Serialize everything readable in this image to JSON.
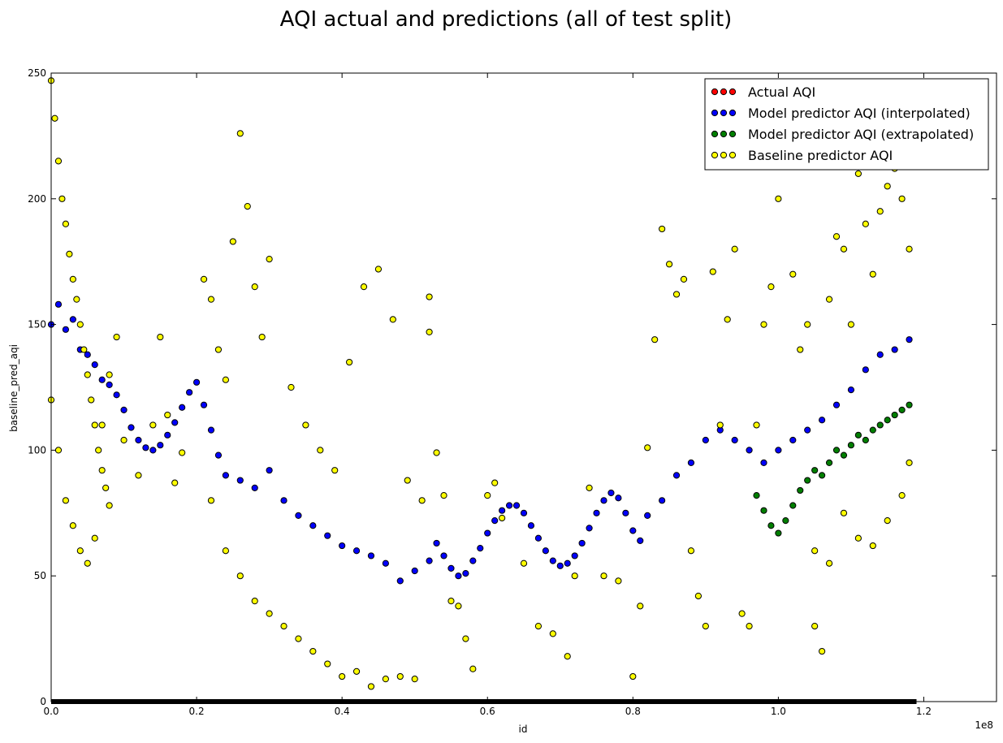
{
  "chart_data": {
    "type": "scatter",
    "title": "AQI actual and predictions (all of test split)",
    "xlabel": "id",
    "ylabel": "baseline_pred_aqi",
    "xlim": [
      0,
      1.3
    ],
    "ylim": [
      0,
      250
    ],
    "x_scale_label": "1e8",
    "x_unit_multiplier": 100000000,
    "x_ticks": [
      "0.0",
      "0.2",
      "0.4",
      "0.6",
      "0.8",
      "1.0",
      "1.2"
    ],
    "y_ticks": [
      "0",
      "50",
      "100",
      "150",
      "200",
      "250"
    ],
    "grid": false,
    "legend_position": "top-right",
    "series": [
      {
        "name": "Actual AQI",
        "color": "#ff0000",
        "kind": "flat-line",
        "x_range": [
          0.0,
          1.19
        ],
        "y": 0
      },
      {
        "name": "Model predictor AQI (interpolated)",
        "color": "#0000ff",
        "points": [
          [
            0.0,
            150
          ],
          [
            0.01,
            158
          ],
          [
            0.02,
            148
          ],
          [
            0.03,
            152
          ],
          [
            0.04,
            140
          ],
          [
            0.05,
            138
          ],
          [
            0.06,
            134
          ],
          [
            0.07,
            128
          ],
          [
            0.08,
            126
          ],
          [
            0.09,
            122
          ],
          [
            0.1,
            116
          ],
          [
            0.11,
            109
          ],
          [
            0.12,
            104
          ],
          [
            0.13,
            101
          ],
          [
            0.14,
            100
          ],
          [
            0.15,
            102
          ],
          [
            0.16,
            106
          ],
          [
            0.17,
            111
          ],
          [
            0.18,
            117
          ],
          [
            0.19,
            123
          ],
          [
            0.2,
            127
          ],
          [
            0.21,
            118
          ],
          [
            0.22,
            108
          ],
          [
            0.23,
            98
          ],
          [
            0.24,
            90
          ],
          [
            0.26,
            88
          ],
          [
            0.28,
            85
          ],
          [
            0.3,
            92
          ],
          [
            0.32,
            80
          ],
          [
            0.34,
            74
          ],
          [
            0.36,
            70
          ],
          [
            0.38,
            66
          ],
          [
            0.4,
            62
          ],
          [
            0.42,
            60
          ],
          [
            0.44,
            58
          ],
          [
            0.46,
            55
          ],
          [
            0.48,
            48
          ],
          [
            0.5,
            52
          ],
          [
            0.52,
            56
          ],
          [
            0.53,
            63
          ],
          [
            0.54,
            58
          ],
          [
            0.55,
            53
          ],
          [
            0.56,
            50
          ],
          [
            0.57,
            51
          ],
          [
            0.58,
            56
          ],
          [
            0.59,
            61
          ],
          [
            0.6,
            67
          ],
          [
            0.61,
            72
          ],
          [
            0.62,
            76
          ],
          [
            0.63,
            78
          ],
          [
            0.64,
            78
          ],
          [
            0.65,
            75
          ],
          [
            0.66,
            70
          ],
          [
            0.67,
            65
          ],
          [
            0.68,
            60
          ],
          [
            0.69,
            56
          ],
          [
            0.7,
            54
          ],
          [
            0.71,
            55
          ],
          [
            0.72,
            58
          ],
          [
            0.73,
            63
          ],
          [
            0.74,
            69
          ],
          [
            0.75,
            75
          ],
          [
            0.76,
            80
          ],
          [
            0.77,
            83
          ],
          [
            0.78,
            81
          ],
          [
            0.79,
            75
          ],
          [
            0.8,
            68
          ],
          [
            0.81,
            64
          ],
          [
            0.82,
            74
          ],
          [
            0.84,
            80
          ],
          [
            0.86,
            90
          ],
          [
            0.88,
            95
          ],
          [
            0.9,
            104
          ],
          [
            0.92,
            108
          ],
          [
            0.94,
            104
          ],
          [
            0.96,
            100
          ],
          [
            0.98,
            95
          ],
          [
            1.0,
            100
          ],
          [
            1.02,
            104
          ],
          [
            1.04,
            108
          ],
          [
            1.06,
            112
          ],
          [
            1.08,
            118
          ],
          [
            1.1,
            124
          ],
          [
            1.12,
            132
          ],
          [
            1.14,
            138
          ],
          [
            1.16,
            140
          ],
          [
            1.18,
            144
          ]
        ]
      },
      {
        "name": "Model predictor AQI (extrapolated)",
        "color": "#007f00",
        "points": [
          [
            0.97,
            82
          ],
          [
            0.98,
            76
          ],
          [
            0.99,
            70
          ],
          [
            1.0,
            67
          ],
          [
            1.01,
            72
          ],
          [
            1.02,
            78
          ],
          [
            1.03,
            84
          ],
          [
            1.04,
            88
          ],
          [
            1.05,
            92
          ],
          [
            1.06,
            90
          ],
          [
            1.07,
            95
          ],
          [
            1.08,
            100
          ],
          [
            1.09,
            98
          ],
          [
            1.1,
            102
          ],
          [
            1.11,
            106
          ],
          [
            1.12,
            104
          ],
          [
            1.13,
            108
          ],
          [
            1.14,
            110
          ],
          [
            1.15,
            112
          ],
          [
            1.16,
            114
          ],
          [
            1.17,
            116
          ],
          [
            1.18,
            118
          ]
        ]
      },
      {
        "name": "Baseline predictor AQI",
        "color": "#ffff00",
        "points": [
          [
            0.0,
            247
          ],
          [
            0.005,
            232
          ],
          [
            0.01,
            215
          ],
          [
            0.015,
            200
          ],
          [
            0.02,
            190
          ],
          [
            0.025,
            178
          ],
          [
            0.03,
            168
          ],
          [
            0.035,
            160
          ],
          [
            0.04,
            150
          ],
          [
            0.045,
            140
          ],
          [
            0.05,
            130
          ],
          [
            0.055,
            120
          ],
          [
            0.06,
            110
          ],
          [
            0.065,
            100
          ],
          [
            0.07,
            92
          ],
          [
            0.075,
            85
          ],
          [
            0.08,
            78
          ],
          [
            0.0,
            120
          ],
          [
            0.01,
            100
          ],
          [
            0.02,
            80
          ],
          [
            0.03,
            70
          ],
          [
            0.04,
            60
          ],
          [
            0.05,
            55
          ],
          [
            0.06,
            65
          ],
          [
            0.07,
            110
          ],
          [
            0.08,
            130
          ],
          [
            0.09,
            145
          ],
          [
            0.1,
            104
          ],
          [
            0.12,
            90
          ],
          [
            0.14,
            110
          ],
          [
            0.15,
            145
          ],
          [
            0.16,
            114
          ],
          [
            0.17,
            87
          ],
          [
            0.18,
            99
          ],
          [
            0.21,
            168
          ],
          [
            0.22,
            160
          ],
          [
            0.23,
            140
          ],
          [
            0.24,
            128
          ],
          [
            0.25,
            183
          ],
          [
            0.26,
            226
          ],
          [
            0.27,
            197
          ],
          [
            0.28,
            165
          ],
          [
            0.29,
            145
          ],
          [
            0.3,
            176
          ],
          [
            0.22,
            80
          ],
          [
            0.24,
            60
          ],
          [
            0.26,
            50
          ],
          [
            0.28,
            40
          ],
          [
            0.3,
            35
          ],
          [
            0.32,
            30
          ],
          [
            0.34,
            25
          ],
          [
            0.36,
            20
          ],
          [
            0.38,
            15
          ],
          [
            0.4,
            10
          ],
          [
            0.42,
            12
          ],
          [
            0.44,
            6
          ],
          [
            0.46,
            9
          ],
          [
            0.48,
            10
          ],
          [
            0.5,
            9
          ],
          [
            0.33,
            125
          ],
          [
            0.35,
            110
          ],
          [
            0.37,
            100
          ],
          [
            0.39,
            92
          ],
          [
            0.41,
            135
          ],
          [
            0.43,
            165
          ],
          [
            0.45,
            172
          ],
          [
            0.47,
            152
          ],
          [
            0.49,
            88
          ],
          [
            0.51,
            80
          ],
          [
            0.52,
            161
          ],
          [
            0.52,
            147
          ],
          [
            0.53,
            99
          ],
          [
            0.54,
            82
          ],
          [
            0.55,
            40
          ],
          [
            0.56,
            38
          ],
          [
            0.57,
            25
          ],
          [
            0.58,
            13
          ],
          [
            0.6,
            82
          ],
          [
            0.61,
            87
          ],
          [
            0.62,
            73
          ],
          [
            0.65,
            55
          ],
          [
            0.67,
            30
          ],
          [
            0.69,
            27
          ],
          [
            0.71,
            18
          ],
          [
            0.72,
            50
          ],
          [
            0.74,
            85
          ],
          [
            0.76,
            50
          ],
          [
            0.78,
            48
          ],
          [
            0.8,
            10
          ],
          [
            0.81,
            38
          ],
          [
            0.82,
            101
          ],
          [
            0.83,
            144
          ],
          [
            0.84,
            188
          ],
          [
            0.85,
            174
          ],
          [
            0.86,
            162
          ],
          [
            0.87,
            168
          ],
          [
            0.88,
            60
          ],
          [
            0.89,
            42
          ],
          [
            0.9,
            30
          ],
          [
            0.91,
            171
          ],
          [
            0.92,
            110
          ],
          [
            0.93,
            152
          ],
          [
            0.94,
            180
          ],
          [
            0.95,
            35
          ],
          [
            0.96,
            30
          ],
          [
            0.97,
            110
          ],
          [
            0.98,
            150
          ],
          [
            0.99,
            165
          ],
          [
            1.0,
            200
          ],
          [
            1.01,
            215
          ],
          [
            1.02,
            170
          ],
          [
            1.03,
            140
          ],
          [
            1.04,
            150
          ],
          [
            1.05,
            30
          ],
          [
            1.06,
            20
          ],
          [
            1.07,
            160
          ],
          [
            1.08,
            185
          ],
          [
            1.09,
            180
          ],
          [
            1.1,
            150
          ],
          [
            1.11,
            210
          ],
          [
            1.12,
            190
          ],
          [
            1.13,
            170
          ],
          [
            1.14,
            195
          ],
          [
            1.15,
            205
          ],
          [
            1.16,
            212
          ],
          [
            1.17,
            200
          ],
          [
            1.18,
            180
          ],
          [
            1.05,
            60
          ],
          [
            1.07,
            55
          ],
          [
            1.09,
            75
          ],
          [
            1.11,
            65
          ],
          [
            1.13,
            62
          ],
          [
            1.15,
            72
          ],
          [
            1.17,
            82
          ],
          [
            1.18,
            95
          ]
        ]
      }
    ]
  }
}
